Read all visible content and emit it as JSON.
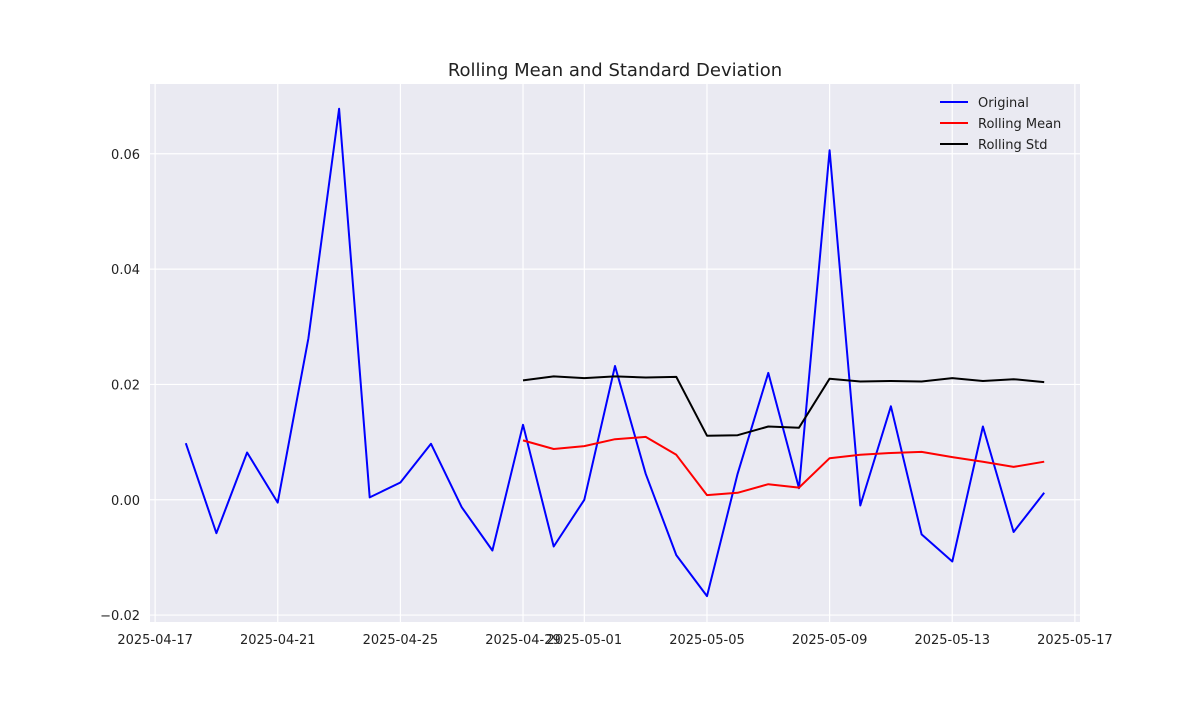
{
  "chart_data": {
    "type": "line",
    "title": "Rolling Mean and Standard Deviation",
    "xlabel": "",
    "ylabel": "",
    "x_axis_type": "date",
    "xlim": [
      "2025-04-16T20:00",
      "2025-05-17T04:00"
    ],
    "ylim": [
      -0.0212,
      0.0721
    ],
    "x_ticks": [
      "2025-04-17",
      "2025-04-21",
      "2025-04-25",
      "2025-04-29",
      "2025-05-01",
      "2025-05-05",
      "2025-05-09",
      "2025-05-13",
      "2025-05-17"
    ],
    "y_ticks": [
      -0.02,
      0.0,
      0.02,
      0.04,
      0.06
    ],
    "y_tick_labels": [
      "−0.02",
      "0.00",
      "0.02",
      "0.04",
      "0.06"
    ],
    "grid": true,
    "legend_position": "top-right",
    "series": [
      {
        "name": "Original",
        "color": "#0000ff",
        "points": [
          [
            "2025-04-18",
            0.0098
          ],
          [
            "2025-04-19",
            -0.0058
          ],
          [
            "2025-04-20",
            0.0082
          ],
          [
            "2025-04-21",
            -0.0005
          ],
          [
            "2025-04-22",
            0.028
          ],
          [
            "2025-04-23",
            0.0678
          ],
          [
            "2025-04-24",
            0.0004
          ],
          [
            "2025-04-25",
            0.003
          ],
          [
            "2025-04-26",
            0.0097
          ],
          [
            "2025-04-27",
            -0.0013
          ],
          [
            "2025-04-28",
            -0.0088
          ],
          [
            "2025-04-29",
            0.013
          ],
          [
            "2025-04-30",
            -0.0081
          ],
          [
            "2025-05-01",
            0.0
          ],
          [
            "2025-05-02",
            0.0232
          ],
          [
            "2025-05-03",
            0.0045
          ],
          [
            "2025-05-04",
            -0.0096
          ],
          [
            "2025-05-05",
            -0.0167
          ],
          [
            "2025-05-06",
            0.0045
          ],
          [
            "2025-05-07",
            0.022
          ],
          [
            "2025-05-08",
            0.002
          ],
          [
            "2025-05-09",
            0.0606
          ],
          [
            "2025-05-10",
            -0.001
          ],
          [
            "2025-05-11",
            0.0162
          ],
          [
            "2025-05-12",
            -0.006
          ],
          [
            "2025-05-13",
            -0.0107
          ],
          [
            "2025-05-14",
            0.0127
          ],
          [
            "2025-05-15",
            -0.0056
          ],
          [
            "2025-05-16",
            0.0012
          ]
        ]
      },
      {
        "name": "Rolling Mean",
        "color": "#ff0000",
        "points": [
          [
            "2025-04-29",
            0.0103
          ],
          [
            "2025-04-30",
            0.0088
          ],
          [
            "2025-05-01",
            0.0093
          ],
          [
            "2025-05-02",
            0.0105
          ],
          [
            "2025-05-03",
            0.0109
          ],
          [
            "2025-05-04",
            0.0078
          ],
          [
            "2025-05-05",
            0.0008
          ],
          [
            "2025-05-06",
            0.0012
          ],
          [
            "2025-05-07",
            0.0027
          ],
          [
            "2025-05-08",
            0.0021
          ],
          [
            "2025-05-09",
            0.0072
          ],
          [
            "2025-05-10",
            0.0078
          ],
          [
            "2025-05-11",
            0.0081
          ],
          [
            "2025-05-12",
            0.0083
          ],
          [
            "2025-05-13",
            0.0074
          ],
          [
            "2025-05-14",
            0.0066
          ],
          [
            "2025-05-15",
            0.0057
          ],
          [
            "2025-05-16",
            0.0066
          ]
        ]
      },
      {
        "name": "Rolling Std",
        "color": "#000000",
        "points": [
          [
            "2025-04-29",
            0.0207
          ],
          [
            "2025-04-30",
            0.0214
          ],
          [
            "2025-05-01",
            0.0211
          ],
          [
            "2025-05-02",
            0.0214
          ],
          [
            "2025-05-03",
            0.0212
          ],
          [
            "2025-05-04",
            0.0213
          ],
          [
            "2025-05-05",
            0.0111
          ],
          [
            "2025-05-06",
            0.0112
          ],
          [
            "2025-05-07",
            0.0127
          ],
          [
            "2025-05-08",
            0.0125
          ],
          [
            "2025-05-09",
            0.021
          ],
          [
            "2025-05-10",
            0.0205
          ],
          [
            "2025-05-11",
            0.0206
          ],
          [
            "2025-05-12",
            0.0205
          ],
          [
            "2025-05-13",
            0.0211
          ],
          [
            "2025-05-14",
            0.0206
          ],
          [
            "2025-05-15",
            0.0209
          ],
          [
            "2025-05-16",
            0.0204
          ]
        ]
      }
    ]
  },
  "colors": {
    "plot_background": "#eaeaf2",
    "grid": "#ffffff",
    "page_background": "#ffffff"
  }
}
